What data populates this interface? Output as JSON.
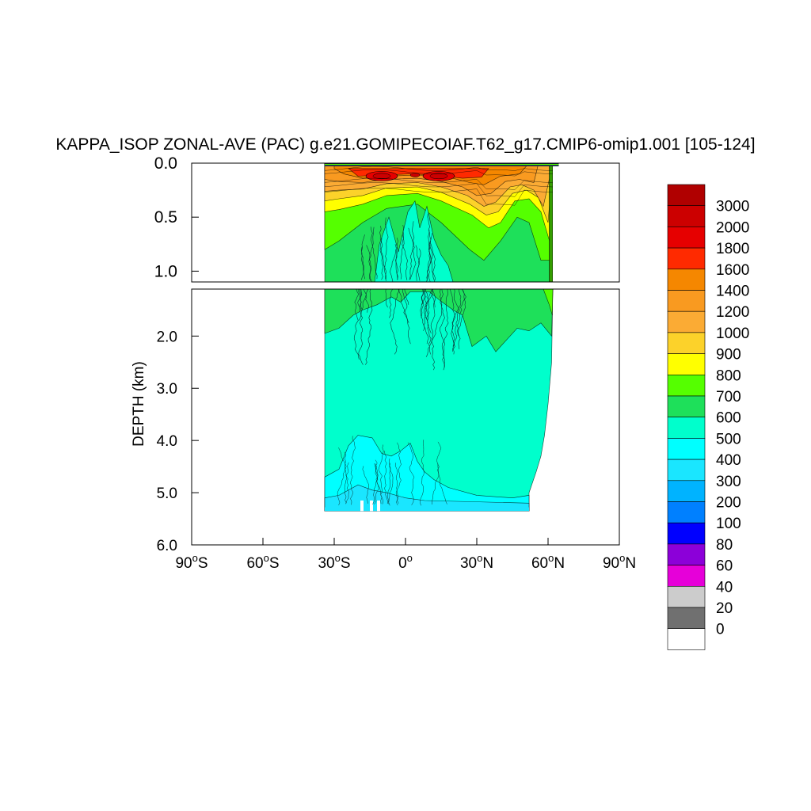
{
  "chart_data": {
    "type": "heatmap",
    "title": "KAPPA_ISOP ZONAL-AVE (PAC) g.e21.GOMIPECOIAF.T62_g17.CMIP6-omip1.001 [105-124]",
    "ylabel": "DEPTH (km)",
    "xlabel": "",
    "xlim": [
      -90,
      90
    ],
    "ylim_upper_km": [
      0.0,
      1.1
    ],
    "ylim_lower_km": [
      1.1,
      6.0
    ],
    "y_ticks_upper": [
      "0.0",
      "0.5",
      "1.0"
    ],
    "y_ticks_lower": [
      "2.0",
      "3.0",
      "4.0",
      "5.0",
      "6.0"
    ],
    "x_ticks": [
      {
        "value": -90,
        "label": "90",
        "hemi": "S"
      },
      {
        "value": -60,
        "label": "60",
        "hemi": "S"
      },
      {
        "value": -30,
        "label": "30",
        "hemi": "S"
      },
      {
        "value": 0,
        "label": "0",
        "hemi": ""
      },
      {
        "value": 30,
        "label": "30",
        "hemi": "N"
      },
      {
        "value": 60,
        "label": "60",
        "hemi": "N"
      },
      {
        "value": 90,
        "label": "90",
        "hemi": "N"
      }
    ],
    "grid": false,
    "data_extent": {
      "lat_south": -34,
      "lat_north": 62,
      "max_depth_km": 5.35
    },
    "colorbar": {
      "labels": [
        "3000",
        "2000",
        "1800",
        "1600",
        "1400",
        "1200",
        "1000",
        "900",
        "800",
        "700",
        "600",
        "500",
        "400",
        "300",
        "200",
        "100",
        "80",
        "60",
        "40",
        "20",
        "0"
      ],
      "colors": [
        "#b00000",
        "#cc0000",
        "#e60000",
        "#ff2a00",
        "#f58700",
        "#f99a20",
        "#fbab34",
        "#fcd22a",
        "#ffff00",
        "#55ff00",
        "#1ee05a",
        "#00ffcc",
        "#00ffff",
        "#1ae6ff",
        "#00b3ff",
        "#0080ff",
        "#0000ff",
        "#8c00d9",
        "#e600d9",
        "#cccccc",
        "#707070",
        "#ffffff"
      ]
    },
    "fields": [
      {
        "name": "upper_high",
        "value_range": [
          1600,
          3000
        ],
        "lat_range": [
          -25,
          30
        ],
        "depth_km": [
          0.0,
          0.2
        ]
      },
      {
        "name": "thermocline_orange",
        "value_range": [
          800,
          1400
        ],
        "lat_range": [
          -34,
          62
        ],
        "depth_km": [
          0.0,
          0.7
        ]
      },
      {
        "name": "intermediate_green",
        "value_range": [
          600,
          700
        ],
        "lat_range": [
          -34,
          62
        ],
        "depth_km": [
          0.3,
          1.9
        ]
      },
      {
        "name": "deep_cyan",
        "value_range": [
          500,
          600
        ],
        "lat_range": [
          -34,
          60
        ],
        "depth_km": [
          1.5,
          5.3
        ]
      },
      {
        "name": "abyssal_light",
        "value_range": [
          300,
          500
        ],
        "lat_range": [
          -34,
          52
        ],
        "depth_km": [
          3.9,
          5.35
        ]
      }
    ]
  }
}
